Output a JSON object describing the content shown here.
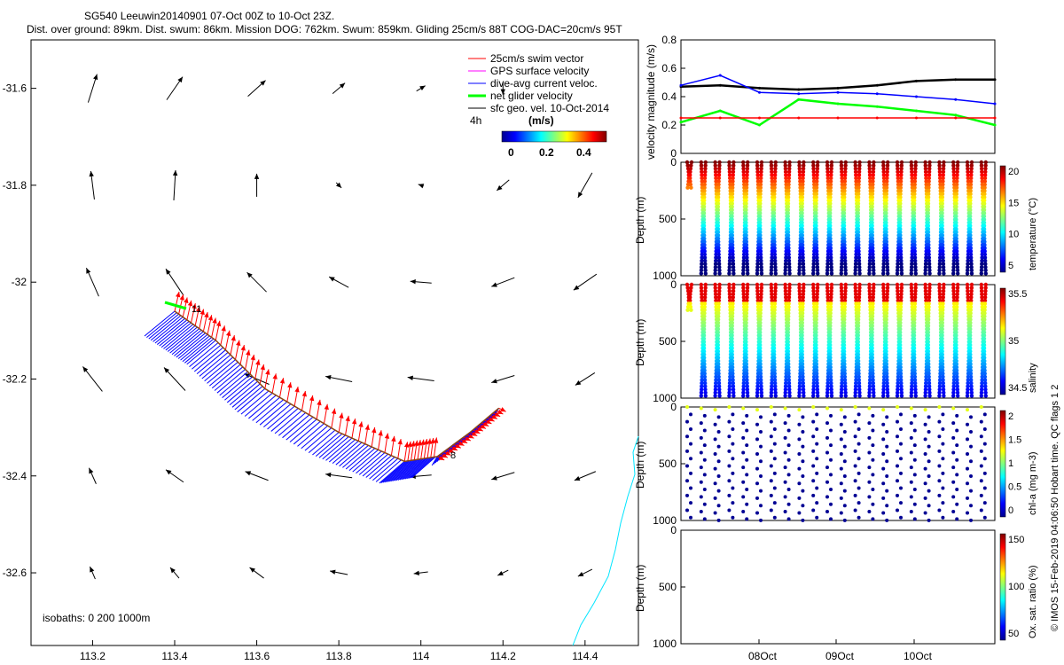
{
  "header": {
    "line1": "SG540 Leeuwin20140901 07-Oct 00Z to 10-Oct 23Z.",
    "line2": "Dist. over ground: 89km. Dist. swum: 86km. Mission DOG: 762km. Swum: 859km. Gliding 25cm/s 88T COG-DAC=20cm/s 95T"
  },
  "copyright": "© IMOS 15-Feb-2019 04:06:50 Hobart time. QC flags 1  2",
  "colors": {
    "swim": "#ff0000",
    "gps": "#ff00ff",
    "dac": "#0000ff",
    "net": "#00ff00",
    "sfc": "#000000",
    "coast": "#00e5ff",
    "track": "#8b4513"
  },
  "chart_data": [
    {
      "type": "scatter",
      "subtype": "quiver-map",
      "xlim": [
        113.05,
        114.53
      ],
      "ylim": [
        -32.75,
        -31.5
      ],
      "xticks": [
        "113.2",
        "113.4",
        "113.6",
        "113.8",
        "114",
        "114.2",
        "114.4"
      ],
      "yticks": [
        "-31.6",
        "-31.8",
        "-32",
        "-32.2",
        "-32.4",
        "-32.6"
      ],
      "legend": {
        "position": "top-right",
        "items": [
          "25cm/s swim vector",
          "GPS surface velocity",
          "dive-avg current veloc.",
          "net glider velocity",
          "sfc geo. vel. 10-Oct-2014"
        ],
        "note": "4h"
      },
      "colorbar": {
        "label": "(m/s)",
        "ticks": [
          "0",
          "0.2",
          "0.4"
        ]
      },
      "isobaths": "isobaths: 0   200   1000m",
      "track_labels": [
        "11",
        "8"
      ],
      "track": [
        [
          113.4,
          -32.06
        ],
        [
          113.5,
          -32.12
        ],
        [
          113.62,
          -32.22
        ],
        [
          113.8,
          -32.31
        ],
        [
          113.96,
          -32.37
        ],
        [
          114.04,
          -32.36
        ],
        [
          114.12,
          -32.31
        ],
        [
          114.19,
          -32.26
        ]
      ]
    },
    {
      "type": "line",
      "ylabel": "velocity magnitude (m/s)",
      "ylim": [
        0,
        0.8
      ],
      "yticks": [
        "0",
        "0.2",
        "0.4",
        "0.6",
        "0.8"
      ],
      "x": [
        "07-Oct 00Z",
        "07-Oct 12Z",
        "08-Oct 00Z",
        "08-Oct 12Z",
        "09-Oct 00Z",
        "09-Oct 12Z",
        "10-Oct 00Z",
        "10-Oct 12Z",
        "10-Oct 23Z"
      ],
      "series": [
        {
          "values": [
            0.47,
            0.48,
            0.46,
            0.45,
            0.46,
            0.48,
            0.51,
            0.52,
            0.52
          ]
        },
        {
          "values": [
            0.48,
            0.55,
            0.43,
            0.42,
            0.43,
            0.42,
            0.4,
            0.38,
            0.35
          ]
        },
        {
          "values": [
            0.22,
            0.3,
            0.2,
            0.38,
            0.35,
            0.33,
            0.3,
            0.27,
            0.2
          ]
        },
        {
          "values": [
            0.25,
            0.25,
            0.25,
            0.25,
            0.25,
            0.25,
            0.25,
            0.25,
            0.25
          ]
        }
      ]
    },
    {
      "type": "heatmap",
      "subtype": "profile-scatter",
      "ylabel": "Depth (m)",
      "ylim": [
        1000,
        0
      ],
      "yticks": [
        "0",
        "500",
        "1000"
      ],
      "colorbar": {
        "label": "temperature (°C)",
        "ticks": [
          "5",
          "10",
          "15",
          "20"
        ]
      }
    },
    {
      "type": "heatmap",
      "subtype": "profile-scatter",
      "ylabel": "Depth (m)",
      "ylim": [
        1000,
        0
      ],
      "yticks": [
        "0",
        "500",
        "1000"
      ],
      "colorbar": {
        "label": "salinity",
        "ticks": [
          "34.5",
          "35",
          "35.5"
        ]
      }
    },
    {
      "type": "heatmap",
      "subtype": "profile-scatter",
      "ylabel": "Depth (m)",
      "ylim": [
        1000,
        0
      ],
      "yticks": [
        "0",
        "500",
        "1000"
      ],
      "colorbar": {
        "label": "chl-a (mg m-3)",
        "ticks": [
          "0",
          "0.5",
          "1",
          "1.5",
          "2"
        ]
      }
    },
    {
      "type": "heatmap",
      "subtype": "profile-scatter",
      "ylabel": "Depth (m)",
      "ylim": [
        1000,
        0
      ],
      "yticks": [
        "0",
        "500",
        "1000"
      ],
      "colorbar": {
        "label": "Ox. sat. ratio (%)",
        "ticks": [
          "50",
          "100",
          "150"
        ]
      },
      "xticks": [
        "08Oct",
        "09Oct",
        "10Oct"
      ]
    }
  ]
}
